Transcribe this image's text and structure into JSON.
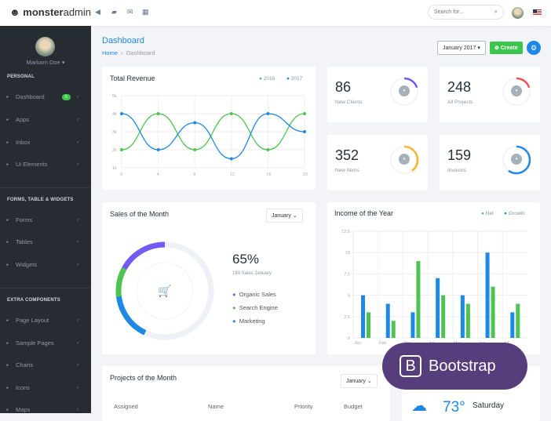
{
  "topbar": {
    "brand_bold": "monster",
    "brand_light": "admin",
    "search_placeholder": "Search for..."
  },
  "sidebar": {
    "user": "Markarn Doe",
    "sections": [
      {
        "title": "PERSONAL",
        "items": [
          {
            "label": "Dashboard",
            "icon": "gauge-icon",
            "badge": "5"
          },
          {
            "label": "Apps",
            "icon": "target-icon"
          },
          {
            "label": "Inbox",
            "icon": "mail-icon"
          },
          {
            "label": "Ui Elements",
            "icon": "bubbles-icon"
          }
        ]
      },
      {
        "title": "FORMS, TABLE & WIDGETS",
        "items": [
          {
            "label": "Forms",
            "icon": "file-icon"
          },
          {
            "label": "Tables",
            "icon": "table-icon"
          },
          {
            "label": "Widgets",
            "icon": "widgets-icon"
          }
        ]
      },
      {
        "title": "EXTRA COMPONENTS",
        "items": [
          {
            "label": "Page Layout",
            "icon": "layout-icon"
          },
          {
            "label": "Sample Pages",
            "icon": "book-icon"
          },
          {
            "label": "Charts",
            "icon": "chart-icon"
          },
          {
            "label": "Icons",
            "icon": "brush-icon"
          },
          {
            "label": "Maps",
            "icon": "pin-icon"
          }
        ]
      }
    ]
  },
  "page": {
    "title": "Dashboard",
    "breadcrumb": [
      "Home",
      "Dashboard"
    ],
    "period": "January 2017",
    "create": "Create"
  },
  "revenue": {
    "title": "Total Revenue"
  },
  "stats": [
    {
      "value": "86",
      "label": "New Clients",
      "color": "#745af2",
      "fraction": 0.2
    },
    {
      "value": "248",
      "label": "All Projects",
      "color": "#ef5350",
      "fraction": 0.2
    },
    {
      "value": "352",
      "label": "New Items",
      "color": "#ffb22b",
      "fraction": 0.4
    },
    {
      "value": "159",
      "label": "Invoices",
      "color": "#1e88e5",
      "fraction": 0.6
    }
  ],
  "sales": {
    "title": "Sales of the Month",
    "select": "January",
    "percent": "65%",
    "sub": "160 Sales January",
    "legend": [
      {
        "label": "Organic Sales",
        "color": "#745af2"
      },
      {
        "label": "Search Engine",
        "color": "#4fc34f"
      },
      {
        "label": "Marketing",
        "color": "#1e88e5"
      }
    ]
  },
  "income": {
    "title": "Income of the Year"
  },
  "projects": {
    "title": "Projects of the Month",
    "select": "January",
    "columns": [
      "Assigned",
      "Name",
      "Priority",
      "Budget"
    ]
  },
  "weather": {
    "temp": "73",
    "day": "Saturday"
  },
  "promo": {
    "label": "Bootstrap"
  },
  "chart_data": [
    {
      "type": "line",
      "title": "Total Revenue",
      "x": [
        0,
        4,
        8,
        12,
        16,
        20
      ],
      "series": [
        {
          "name": "2016",
          "color": "#4fc34f",
          "values": [
            2,
            4,
            2,
            4,
            2,
            4
          ]
        },
        {
          "name": "2017",
          "color": "#1e88e5",
          "values": [
            4,
            2,
            3.5,
            1.5,
            4,
            3
          ]
        }
      ],
      "yticks": [
        "1k",
        "2k",
        "3k",
        "4k",
        "5k"
      ],
      "ylim": [
        1,
        5
      ],
      "xticks": [
        "0",
        "4",
        "8",
        "12",
        "16",
        "20"
      ],
      "grid": true,
      "legend": "top-right"
    },
    {
      "type": "bar",
      "title": "Income of the Year",
      "categories": [
        "Jan",
        "Feb",
        "Mar",
        "Apr",
        "May",
        "Jun",
        "Jul"
      ],
      "series": [
        {
          "name": "Growth",
          "color": "#1e88e5",
          "values": [
            5,
            4,
            3,
            7,
            5,
            10,
            3
          ]
        },
        {
          "name": "Net",
          "color": "#4fc34f",
          "values": [
            3,
            2,
            9,
            5,
            4,
            6,
            4
          ]
        }
      ],
      "yticks": [
        "0",
        "2.5",
        "5",
        "7.5",
        "10",
        "12.5"
      ],
      "ylim": [
        0,
        12.5
      ],
      "grid": true,
      "legend": "top-right"
    },
    {
      "type": "pie",
      "title": "Sales of the Month",
      "categories": [
        "Organic Sales",
        "Search Engine",
        "Marketing"
      ],
      "values": [
        17,
        10,
        16
      ],
      "colors": [
        "#745af2",
        "#4fc34f",
        "#1e88e5"
      ]
    }
  ]
}
